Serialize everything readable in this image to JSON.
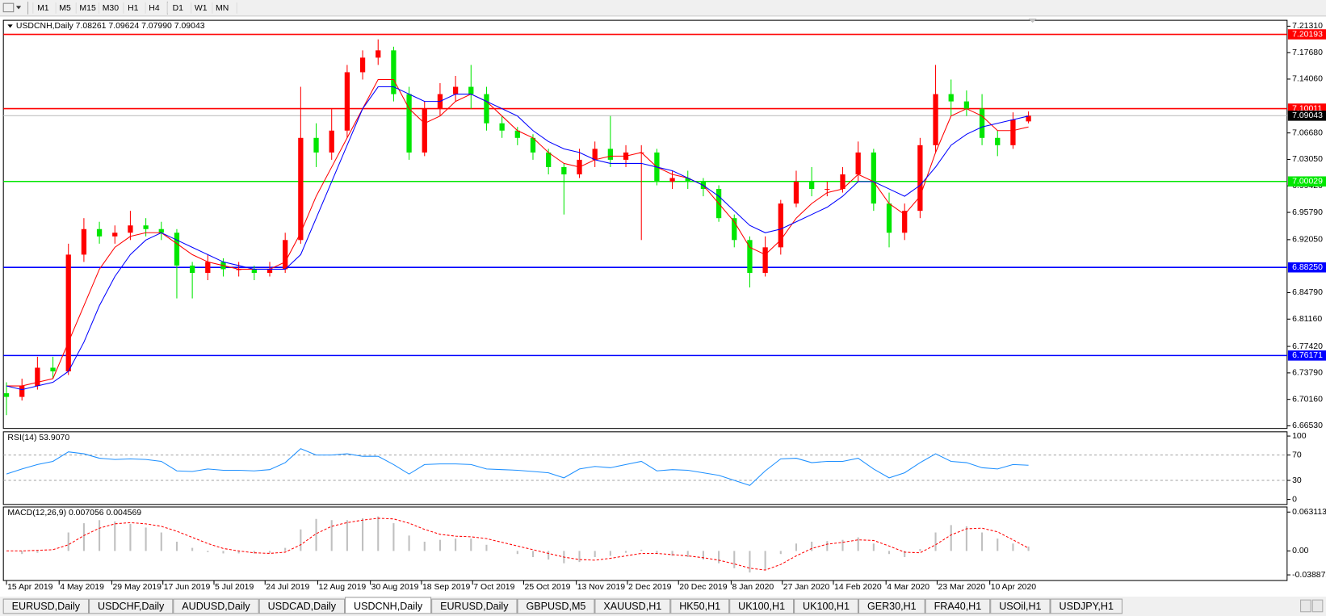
{
  "toolbar": {
    "timeframes": [
      "M1",
      "M5",
      "M15",
      "M30",
      "H1",
      "H4",
      "D1",
      "W1",
      "MN"
    ]
  },
  "tabs": [
    "EURUSD,Daily",
    "USDCHF,Daily",
    "AUDUSD,Daily",
    "USDCAD,Daily",
    "USDCNH,Daily",
    "EURUSD,Daily",
    "GBPUSD,M5",
    "XAUUSD,H1",
    "HK50,H1",
    "UK100,H1",
    "UK100,H1",
    "GER30,H1",
    "FRA40,H1",
    "USOil,H1",
    "USDJPY,H1"
  ],
  "active_tab": 4,
  "chart_data": [
    {
      "type": "candlestick",
      "title": "USDCNH,Daily 7.08261 7.09624 7.07990 7.09043",
      "up_color": "#ff0000",
      "down_color": "#00e600",
      "x": [
        0,
        1,
        2,
        3,
        4,
        5,
        6,
        7,
        8,
        9,
        10,
        11,
        12,
        13,
        14,
        15,
        16,
        17,
        18,
        19,
        20,
        21,
        22,
        23,
        24,
        25,
        26,
        27,
        28,
        29,
        30,
        31,
        32,
        33,
        34,
        35,
        36,
        37,
        38,
        39,
        40,
        41,
        42,
        43,
        44,
        45,
        46,
        47,
        48,
        49,
        50,
        51,
        52,
        53,
        54,
        55,
        56,
        57,
        58,
        59,
        60,
        61,
        62,
        63,
        64,
        65,
        66
      ],
      "open": [
        6.71,
        6.705,
        6.72,
        6.745,
        6.74,
        6.9,
        6.935,
        6.925,
        6.93,
        6.94,
        6.935,
        6.93,
        6.885,
        6.875,
        6.89,
        6.88,
        6.88,
        6.875,
        6.88,
        6.92,
        7.06,
        7.04,
        7.07,
        7.15,
        7.17,
        7.18,
        7.12,
        7.04,
        7.1,
        7.12,
        7.13,
        7.12,
        7.08,
        7.07,
        7.06,
        7.04,
        7.02,
        7.01,
        7.03,
        7.045,
        7.03,
        7.04,
        7.04,
        7.0,
        7.005,
        7.0,
        6.99,
        6.95,
        6.92,
        6.875,
        6.91,
        6.97,
        7.0,
        6.99,
        6.99,
        7.01,
        7.04,
        6.97,
        6.93,
        6.96,
        7.05,
        7.12,
        7.11,
        7.1,
        7.06,
        7.05,
        7.08261
      ],
      "high": [
        6.725,
        6.73,
        6.76,
        6.76,
        6.915,
        6.95,
        6.945,
        6.94,
        6.96,
        6.95,
        6.945,
        6.935,
        6.89,
        6.9,
        6.895,
        6.89,
        6.885,
        6.89,
        6.93,
        7.13,
        7.08,
        7.1,
        7.16,
        7.18,
        7.195,
        7.185,
        7.13,
        7.11,
        7.135,
        7.145,
        7.16,
        7.13,
        7.09,
        7.075,
        7.065,
        7.045,
        7.025,
        7.045,
        7.055,
        7.09,
        7.05,
        7.05,
        7.045,
        7.015,
        7.015,
        7.005,
        6.995,
        6.955,
        6.925,
        6.925,
        6.975,
        7.015,
        7.02,
        7.0,
        7.02,
        7.055,
        7.045,
        6.985,
        6.97,
        7.06,
        7.16,
        7.14,
        7.125,
        7.12,
        7.07,
        7.095,
        7.09624
      ],
      "low": [
        6.68,
        6.7,
        6.715,
        6.73,
        6.735,
        6.89,
        6.915,
        6.915,
        6.92,
        6.925,
        6.92,
        6.84,
        6.84,
        6.865,
        6.87,
        6.87,
        6.865,
        6.87,
        6.875,
        6.915,
        7.02,
        7.03,
        7.06,
        7.14,
        7.16,
        7.11,
        7.03,
        7.035,
        7.09,
        7.11,
        7.1,
        7.07,
        7.06,
        7.05,
        7.03,
        7.01,
        6.955,
        7.005,
        7.02,
        7.02,
        7.02,
        6.92,
        6.995,
        6.99,
        6.99,
        6.98,
        6.945,
        6.91,
        6.855,
        6.87,
        6.9,
        6.965,
        6.98,
        6.98,
        6.985,
        7.0,
        6.96,
        6.91,
        6.92,
        6.95,
        7.04,
        7.09,
        7.09,
        7.05,
        7.035,
        7.045,
        7.0799
      ],
      "close": [
        6.705,
        6.72,
        6.745,
        6.74,
        6.9,
        6.935,
        6.925,
        6.93,
        6.94,
        6.935,
        6.93,
        6.885,
        6.875,
        6.89,
        6.88,
        6.88,
        6.875,
        6.88,
        6.92,
        7.06,
        7.04,
        7.07,
        7.15,
        7.17,
        7.18,
        7.12,
        7.04,
        7.1,
        7.12,
        7.13,
        7.12,
        7.08,
        7.07,
        7.06,
        7.04,
        7.02,
        7.01,
        7.03,
        7.045,
        7.03,
        7.04,
        7.04,
        7.0,
        7.005,
        7.0,
        6.99,
        6.95,
        6.92,
        6.875,
        6.91,
        6.97,
        7.0,
        6.99,
        6.99,
        7.01,
        7.04,
        6.97,
        6.93,
        6.96,
        7.05,
        7.12,
        7.11,
        7.1,
        7.06,
        7.05,
        7.085,
        7.09043
      ],
      "series": [
        {
          "color": "#ff0000",
          "values": [
            6.72,
            6.72,
            6.725,
            6.73,
            6.78,
            6.83,
            6.88,
            6.91,
            6.925,
            6.93,
            6.93,
            6.915,
            6.9,
            6.89,
            6.885,
            6.88,
            6.88,
            6.88,
            6.89,
            6.93,
            6.98,
            7.02,
            7.06,
            7.1,
            7.14,
            7.14,
            7.1,
            7.08,
            7.09,
            7.11,
            7.12,
            7.11,
            7.09,
            7.07,
            7.06,
            7.04,
            7.025,
            7.02,
            7.03,
            7.035,
            7.035,
            7.04,
            7.02,
            7.01,
            7.005,
            6.995,
            6.97,
            6.945,
            6.91,
            6.9,
            6.92,
            6.95,
            6.97,
            6.985,
            6.99,
            7.01,
            7.0,
            6.97,
            6.955,
            6.98,
            7.04,
            7.09,
            7.1,
            7.09,
            7.07,
            7.07,
            7.075
          ]
        },
        {
          "color": "#0000ff",
          "values": [
            6.72,
            6.715,
            6.72,
            6.725,
            6.74,
            6.78,
            6.83,
            6.87,
            6.9,
            6.92,
            6.93,
            6.92,
            6.91,
            6.9,
            6.89,
            6.885,
            6.88,
            6.88,
            6.88,
            6.9,
            6.95,
            7.0,
            7.05,
            7.1,
            7.13,
            7.13,
            7.12,
            7.11,
            7.11,
            7.12,
            7.12,
            7.11,
            7.1,
            7.09,
            7.07,
            7.055,
            7.045,
            7.04,
            7.03,
            7.025,
            7.025,
            7.025,
            7.02,
            7.015,
            7.005,
            6.995,
            6.98,
            6.96,
            6.94,
            6.93,
            6.935,
            6.945,
            6.955,
            6.965,
            6.98,
            7.0,
            7.0,
            6.99,
            6.98,
            6.995,
            7.02,
            7.05,
            7.065,
            7.075,
            7.08,
            7.085,
            7.09
          ]
        }
      ],
      "levels": [
        {
          "value": 7.20193,
          "label": "7.20193",
          "color": "#ff0000"
        },
        {
          "value": 7.10011,
          "label": "7.10011",
          "color": "#ff0000"
        },
        {
          "value": 7.00029,
          "label": "7.00029",
          "color": "#00e600"
        },
        {
          "value": 6.8825,
          "label": "6.88250",
          "color": "#0000ff"
        },
        {
          "value": 6.76171,
          "label": "6.76171",
          "color": "#0000ff"
        }
      ],
      "current_price": {
        "value": 7.09043,
        "label": "7.09043",
        "line_color": "#c0c0c0",
        "label_color": "#000000"
      },
      "xlim": [
        -0.2,
        82.7
      ],
      "ylim": [
        6.6618,
        7.2212
      ],
      "yticks": [
        {
          "value": 7.2131,
          "label": "7.21310"
        },
        {
          "value": 7.1768,
          "label": "7.17680"
        },
        {
          "value": 7.1406,
          "label": "7.14060"
        },
        {
          "value": 7.0668,
          "label": "7.06680"
        },
        {
          "value": 7.0305,
          "label": "7.03050"
        },
        {
          "value": 6.9942,
          "label": "6.99420"
        },
        {
          "value": 6.9579,
          "label": "6.95790"
        },
        {
          "value": 6.9205,
          "label": "6.92050"
        },
        {
          "value": 6.8479,
          "label": "6.84790"
        },
        {
          "value": 6.8116,
          "label": "6.81160"
        },
        {
          "value": 6.7742,
          "label": "6.77420"
        },
        {
          "value": 6.7379,
          "label": "6.73790"
        },
        {
          "value": 6.7016,
          "label": "6.70160"
        },
        {
          "value": 6.6653,
          "label": "6.66530"
        }
      ],
      "xticks": [
        {
          "value": 0,
          "label": "15 Apr 2019"
        },
        {
          "value": 3.4,
          "label": "4 May 2019"
        },
        {
          "value": 6.8,
          "label": "29 May 2019"
        },
        {
          "value": 10.1,
          "label": "17 Jun 2019"
        },
        {
          "value": 13.4,
          "label": "5 Jul 2019"
        },
        {
          "value": 16.7,
          "label": "24 Jul 2019"
        },
        {
          "value": 20.1,
          "label": "12 Aug 2019"
        },
        {
          "value": 23.5,
          "label": "30 Aug 2019"
        },
        {
          "value": 26.8,
          "label": "18 Sep 2019"
        },
        {
          "value": 30.1,
          "label": "7 Oct 2019"
        },
        {
          "value": 33.4,
          "label": "25 Oct 2019"
        },
        {
          "value": 36.8,
          "label": "13 Nov 2019"
        },
        {
          "value": 40.1,
          "label": "2 Dec 2019"
        },
        {
          "value": 43.4,
          "label": "20 Dec 2019"
        },
        {
          "value": 46.8,
          "label": "8 Jan 2020"
        },
        {
          "value": 50.1,
          "label": "27 Jan 2020"
        },
        {
          "value": 53.4,
          "label": "14 Feb 2020"
        },
        {
          "value": 56.8,
          "label": "4 Mar 2020"
        },
        {
          "value": 60.1,
          "label": "23 Mar 2020"
        },
        {
          "value": 63.5,
          "label": "10 Apr 2020"
        }
      ]
    },
    {
      "type": "line",
      "title": "RSI(14) 53.9070",
      "series": [
        {
          "color": "#1e90ff",
          "values": [
            40,
            48,
            55,
            60,
            75,
            72,
            65,
            63,
            64,
            63,
            60,
            45,
            44,
            48,
            46,
            46,
            45,
            47,
            58,
            80,
            70,
            70,
            72,
            68,
            68,
            55,
            40,
            55,
            56,
            56,
            55,
            48,
            47,
            46,
            44,
            42,
            34,
            48,
            52,
            50,
            55,
            60,
            45,
            47,
            46,
            42,
            38,
            30,
            22,
            45,
            64,
            65,
            58,
            60,
            60,
            65,
            48,
            34,
            42,
            58,
            72,
            60,
            58,
            50,
            48,
            55,
            53.907
          ]
        }
      ],
      "reference_lines": [
        70,
        30
      ],
      "ylim": [
        -8,
        106.7
      ],
      "yticks": [
        100,
        70,
        30,
        0
      ]
    },
    {
      "type": "macd",
      "title": "MACD(12,26,9) 0.007056 0.004569",
      "histogram": {
        "color": "#c0c0c0",
        "values": [
          0,
          -0.005,
          -0.003,
          0.0,
          0.03,
          0.045,
          0.05,
          0.048,
          0.044,
          0.038,
          0.03,
          0.015,
          0.005,
          -0.002,
          -0.004,
          -0.004,
          -0.004,
          -0.003,
          0.005,
          0.035,
          0.052,
          0.05,
          0.05,
          0.053,
          0.056,
          0.045,
          0.025,
          0.015,
          0.018,
          0.02,
          0.02,
          0.01,
          0.0,
          -0.005,
          -0.01,
          -0.014,
          -0.02,
          -0.018,
          -0.01,
          -0.008,
          -0.003,
          0.002,
          -0.005,
          -0.008,
          -0.01,
          -0.014,
          -0.02,
          -0.028,
          -0.035,
          -0.03,
          -0.005,
          0.012,
          0.015,
          0.016,
          0.018,
          0.022,
          0.012,
          -0.005,
          -0.01,
          0.003,
          0.03,
          0.042,
          0.04,
          0.03,
          0.02,
          0.012,
          0.007056
        ]
      },
      "signal": {
        "color": "#ff0000",
        "values": [
          0,
          0,
          0.001,
          0.002,
          0.01,
          0.025,
          0.037,
          0.044,
          0.046,
          0.044,
          0.04,
          0.032,
          0.022,
          0.012,
          0.004,
          0.0,
          -0.003,
          -0.004,
          -0.002,
          0.01,
          0.028,
          0.04,
          0.046,
          0.05,
          0.053,
          0.052,
          0.045,
          0.035,
          0.027,
          0.024,
          0.023,
          0.02,
          0.014,
          0.008,
          0.002,
          -0.004,
          -0.01,
          -0.014,
          -0.015,
          -0.012,
          -0.008,
          -0.004,
          -0.004,
          -0.006,
          -0.008,
          -0.011,
          -0.015,
          -0.021,
          -0.028,
          -0.031,
          -0.022,
          -0.008,
          0.004,
          0.011,
          0.014,
          0.018,
          0.017,
          0.008,
          -0.002,
          -0.003,
          0.01,
          0.026,
          0.036,
          0.037,
          0.031,
          0.018,
          0.004569
        ]
      },
      "ylim": [
        -0.04802,
        0.07135
      ],
      "yticks": [
        0.063113,
        {
          "value": 0,
          "label": "0.00"
        },
        -0.038872
      ]
    }
  ]
}
